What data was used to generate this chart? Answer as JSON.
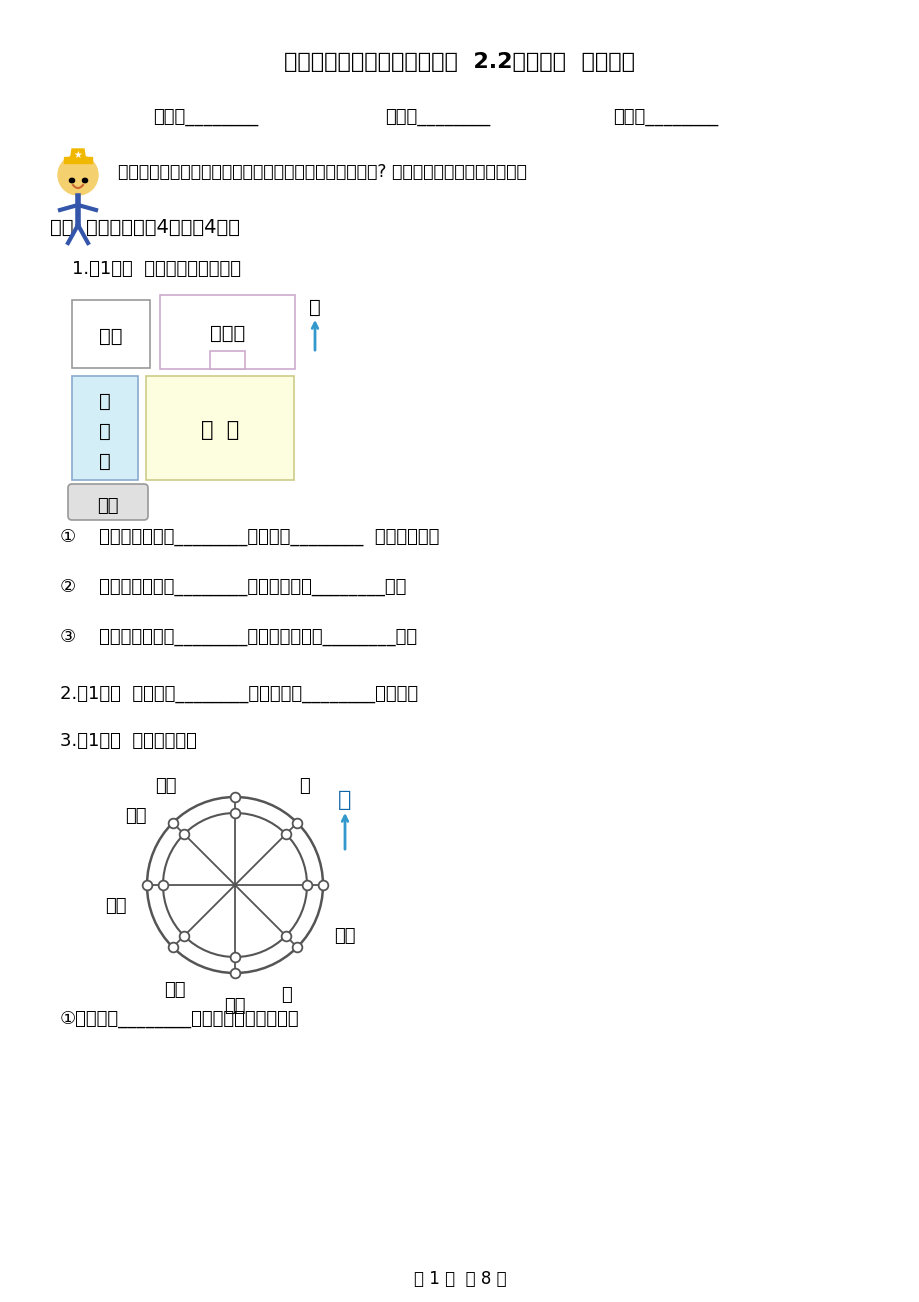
{
  "title": "上海市宝山区数学二年级下册  2.2辨认方向  同步练习",
  "subtitle": "亲爱的小朋友们，这一段时间的学习，你们收获怎么样呢? 今天就让我们来检验一下吧！",
  "fields": [
    "姓名：________",
    "班级：________",
    "成绩：________"
  ],
  "section1": "一、  填空题。（共4题；共4分）",
  "q1_header": "1.（1分）  根据图片回答问题：",
  "q1_items": [
    "①    教学楼在食堂的________，食堂的________  面是实验楼。",
    "②    实验楼在食堂的________面，在花坛的________面。",
    "③    操场在教学楼的________面，在实验楼的________面。"
  ],
  "q2": "2.（1分）  小燕子在________方过冬，在________方度夏。",
  "q3": "3.（1分）  幸运大转盘。",
  "q3_sub": "①指针指向________面时，指的物品是鞋。",
  "footer": "第 1 页  共 8 页",
  "map_bei": "北",
  "map_shitang": "食堂",
  "map_jiaoxuelou": "教学楼",
  "map_shiyanglou_chars": [
    "实",
    "验",
    "楼"
  ],
  "map_caochang": "操  场",
  "map_huatan": "花坛",
  "cmp_bei": "北",
  "cmp_kaoxiang": "烤箱",
  "cmp_pingguo": "苹果",
  "cmp_shu": "书",
  "cmp_lanjiu": "篮球",
  "cmp_jianzi": "键子",
  "cmp_zuqiu": "足球",
  "cmp_xie": "鞋",
  "cmp_shangy": "上衣",
  "bg_color": "#ffffff",
  "map_shitang_bg": "#ffffff",
  "map_shitang_edge": "#999999",
  "map_jxl_bg": "#ffffff",
  "map_jxl_edge": "#ccaacc",
  "map_syl_bg": "#d4eef8",
  "map_syl_edge": "#88aacc",
  "map_cc_bg": "#fdfde0",
  "map_cc_edge": "#cccc88",
  "map_ht_bg": "#e0e0e0",
  "map_ht_edge": "#999999",
  "arrow_color": "#3399cc",
  "line_color": "#555555"
}
